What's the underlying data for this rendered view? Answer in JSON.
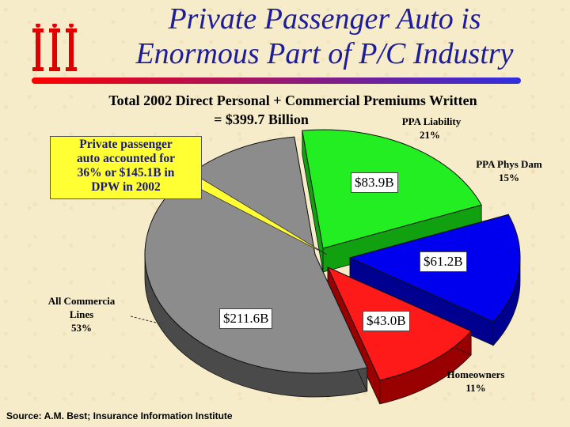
{
  "header": {
    "title_line1": "Private Passenger Auto is",
    "title_line2": "Enormous Part of P/C Industry",
    "logo_text": "iii"
  },
  "colors": {
    "title": "#1d1d9c",
    "rule_start": "#ff0000",
    "rule_end": "#3030e0",
    "callout_bg": "#ffff33"
  },
  "callout": {
    "text_line1": "Private passenger",
    "text_line2": "auto accounted for",
    "text_line3": "36% or $145.1B in",
    "text_line4": "DPW in 2002"
  },
  "source": "Source:  A.M. Best; Insurance Information Institute",
  "chart_data": {
    "type": "pie",
    "title_line1": "Total 2002 Direct Personal + Commercial Premiums Written",
    "title_line2": "= $399.7 Billion",
    "slices": [
      {
        "label_line1": "PPA Liability",
        "label_line2": "21%",
        "percent": 21,
        "value_label": "$83.9B",
        "value": 83.9,
        "color": "#22ee22",
        "side_color": "#10a010"
      },
      {
        "label_line1": "PPA Phys Dam",
        "label_line2": "15%",
        "percent": 15,
        "value_label": "$61.2B",
        "value": 61.2,
        "color": "#0000ee",
        "side_color": "#000090"
      },
      {
        "label_line1": "Homeowners",
        "label_line2": "11%",
        "percent": 11,
        "value_label": "$43.0B",
        "value": 43.0,
        "color": "#ff1a1a",
        "side_color": "#990000"
      },
      {
        "label_line1": "All Commercia",
        "label_line2": "Lines",
        "label_line3": "53%",
        "percent": 53,
        "value_label": "$211.6B",
        "value": 211.6,
        "color": "#8c8c8c",
        "side_color": "#4a4a4a"
      }
    ]
  }
}
